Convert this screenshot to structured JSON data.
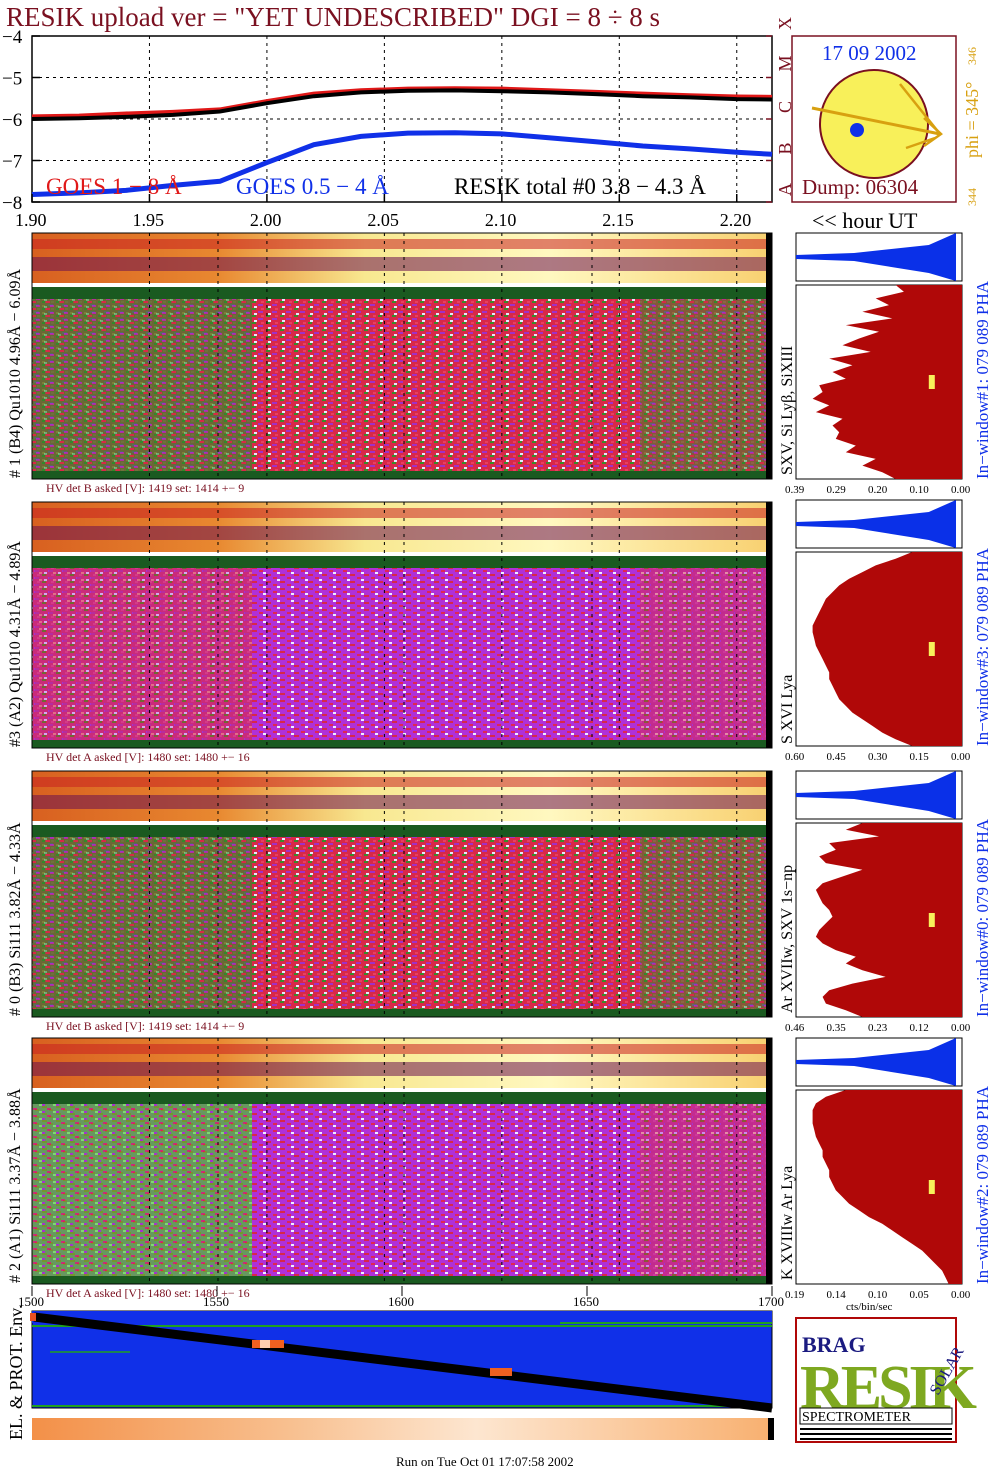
{
  "title": "RESIK upload ver = \"YET UNDESCRIBED\"  DGI =   8 ÷   8 s",
  "colors": {
    "goes_long": "#e01818",
    "goes_short": "#1030e8",
    "resik_total": "#000000",
    "frame": "#7a1020",
    "sun_disk": "#f8f05a",
    "phi_arrow": "#d8a010",
    "pha_blue": "#0a30e8",
    "pha_red": "#b00808"
  },
  "chart_data": [
    {
      "type": "line",
      "title": "GOES / RESIK light curves",
      "x": [
        1.9,
        1.92,
        1.94,
        1.96,
        1.98,
        2.0,
        2.02,
        2.04,
        2.06,
        2.08,
        2.1,
        2.12,
        2.14,
        2.16,
        2.18,
        2.2,
        2.215
      ],
      "series": [
        {
          "name": "GOES 1 − 8 Å",
          "values": [
            -5.95,
            -5.93,
            -5.88,
            -5.84,
            -5.78,
            -5.58,
            -5.4,
            -5.32,
            -5.28,
            -5.27,
            -5.28,
            -5.32,
            -5.36,
            -5.4,
            -5.44,
            -5.47,
            -5.48
          ]
        },
        {
          "name": "GOES 0.5 − 4 Å",
          "values": [
            -7.82,
            -7.78,
            -7.72,
            -7.6,
            -7.5,
            -7.05,
            -6.62,
            -6.42,
            -6.34,
            -6.33,
            -6.36,
            -6.45,
            -6.55,
            -6.65,
            -6.72,
            -6.8,
            -6.85
          ]
        },
        {
          "name": "RESIK total #0  3.8 − 4.3 Å",
          "values": [
            -6.0,
            -5.98,
            -5.95,
            -5.9,
            -5.82,
            -5.62,
            -5.45,
            -5.36,
            -5.32,
            -5.31,
            -5.33,
            -5.36,
            -5.4,
            -5.45,
            -5.48,
            -5.52,
            -5.53
          ]
        }
      ],
      "xticks": [
        "1.90",
        "1.95",
        "2.00",
        "2.05",
        "2.10",
        "2.15",
        "2.20"
      ],
      "yticks": [
        "−4",
        "−5",
        "−6",
        "−7",
        "−8"
      ],
      "xlim": [
        1.9,
        2.215
      ],
      "ylim": [
        -8,
        -4
      ],
      "goes_classes": [
        "A",
        "B",
        "C",
        "M",
        "X"
      ],
      "xlabel": "<< hour UT",
      "grid": true
    },
    {
      "type": "heatmap",
      "panels": [
        {
          "label": "# 1 (B4) Qu1010 4.96Å − 6.09Å",
          "lines": "SXV, Si Lyβ, SiXIII",
          "hv": "HV det B asked [V]:  1419 set:  1414  +−     9"
        },
        {
          "label": "#3 (A2) Qu1010  4.31Å −  4.89Å",
          "lines": "S XVI Lya",
          "hv": "HV det A asked [V]:  1480 set:  1480  +−     16"
        },
        {
          "label": "# 0 (B3) Si111  3.82Å −  4.33Å",
          "lines": "Ar XVIIw,  SXV 1s−np",
          "hv": "HV det B asked [V]:  1419 set:  1414  +−     9"
        },
        {
          "label": "# 2 (A1) Si111  3.37Å −  3.88Å",
          "lines": "K XVIIIw  Ar Lya",
          "hv": "HV det A asked [V]:  1480 set:  1480  +−     16"
        }
      ]
    },
    {
      "type": "area",
      "title": "PHA",
      "panels": [
        {
          "label": "In−window#1:  079 089 PHA",
          "xticks": [
            "0.39",
            "0.29",
            "0.20",
            "0.10",
            "0.00"
          ]
        },
        {
          "label": "In−window#3:  079 089 PHA",
          "xticks": [
            "0.60",
            "0.45",
            "0.30",
            "0.15",
            "0.00"
          ]
        },
        {
          "label": "In−window#0:  079 089 PHA",
          "xticks": [
            "0.46",
            "0.35",
            "0.23",
            "0.12",
            "0.00"
          ]
        },
        {
          "label": "In−window#2:  079 089 PHA",
          "xticks": [
            "0.19",
            "0.14",
            "0.10",
            "0.05",
            "0.00"
          ]
        }
      ],
      "xlabel": "cts/bin/sec"
    },
    {
      "type": "line",
      "title": "EL. & PROT. Env.",
      "xticks": [
        "1500",
        "1550",
        "1600",
        "1650",
        "1700"
      ],
      "xlim": [
        1500,
        1700
      ]
    }
  ],
  "sun": {
    "date": "17 09 2002",
    "phi": "phi = 345°",
    "phi_right": "346",
    "phi_low": "344",
    "dump": "Dump: 06304"
  },
  "logo": {
    "main": "RESIK",
    "top": "BRAG",
    "side": "SOLAR",
    "bottom": "SPECTROMETER"
  },
  "footer": "Run on Tue Oct 01 17:07:58 2002"
}
